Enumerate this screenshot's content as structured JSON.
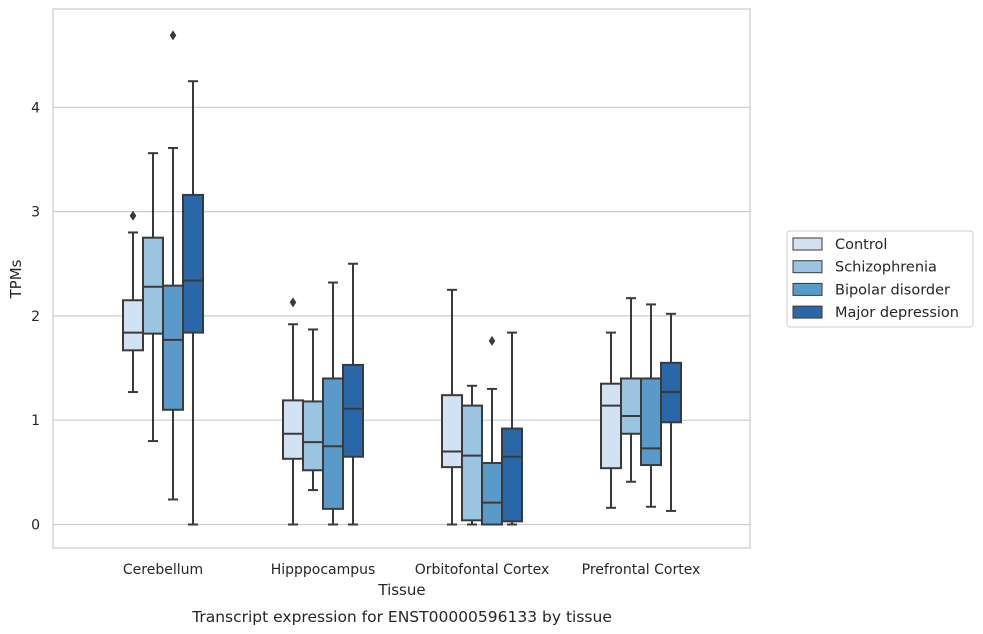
{
  "chart_data": {
    "type": "box",
    "title": "",
    "caption": "Transcript expression for ENST00000596133 by tissue",
    "xlabel": "Tissue",
    "ylabel": "TPMs",
    "ylim": [
      -0.22,
      4.95
    ],
    "yticks": [
      0,
      1,
      2,
      3,
      4
    ],
    "grid": "horizontal",
    "legend_position": "right",
    "categories": [
      "Cerebellum",
      "Hipppocampus",
      "Orbitofontal Cortex",
      "Prefrontal Cortex"
    ],
    "series": [
      {
        "name": "Control",
        "color": "#d2e2f2",
        "boxes": [
          {
            "whisker_low": 1.27,
            "q1": 1.67,
            "median": 1.84,
            "q3": 2.15,
            "whisker_high": 2.8,
            "outliers": [
              2.96
            ]
          },
          {
            "whisker_low": 0.0,
            "q1": 0.63,
            "median": 0.87,
            "q3": 1.19,
            "whisker_high": 1.92,
            "outliers": [
              2.13
            ]
          },
          {
            "whisker_low": 0.0,
            "q1": 0.55,
            "median": 0.7,
            "q3": 1.24,
            "whisker_high": 2.25,
            "outliers": []
          },
          {
            "whisker_low": 0.16,
            "q1": 0.54,
            "median": 1.14,
            "q3": 1.35,
            "whisker_high": 1.84,
            "outliers": []
          }
        ]
      },
      {
        "name": "Schizophrenia",
        "color": "#9ac4df",
        "boxes": [
          {
            "whisker_low": 0.8,
            "q1": 1.83,
            "median": 2.28,
            "q3": 2.75,
            "whisker_high": 3.56,
            "outliers": []
          },
          {
            "whisker_low": 0.33,
            "q1": 0.52,
            "median": 0.79,
            "q3": 1.18,
            "whisker_high": 1.87,
            "outliers": []
          },
          {
            "whisker_low": 0.0,
            "q1": 0.04,
            "median": 0.66,
            "q3": 1.14,
            "whisker_high": 1.33,
            "outliers": []
          },
          {
            "whisker_low": 0.41,
            "q1": 0.87,
            "median": 1.04,
            "q3": 1.4,
            "whisker_high": 2.17,
            "outliers": []
          }
        ]
      },
      {
        "name": "Bipolar disorder",
        "color": "#5a9ac8",
        "boxes": [
          {
            "whisker_low": 0.24,
            "q1": 1.1,
            "median": 1.77,
            "q3": 2.29,
            "whisker_high": 3.61,
            "outliers": [
              4.69
            ]
          },
          {
            "whisker_low": 0.0,
            "q1": 0.15,
            "median": 0.75,
            "q3": 1.4,
            "whisker_high": 2.32,
            "outliers": []
          },
          {
            "whisker_low": 0.0,
            "q1": 0.0,
            "median": 0.21,
            "q3": 0.59,
            "whisker_high": 1.3,
            "outliers": [
              1.76
            ]
          },
          {
            "whisker_low": 0.17,
            "q1": 0.57,
            "median": 0.73,
            "q3": 1.4,
            "whisker_high": 2.11,
            "outliers": []
          }
        ]
      },
      {
        "name": "Major depression",
        "color": "#2967a8",
        "boxes": [
          {
            "whisker_low": 0.0,
            "q1": 1.84,
            "median": 2.34,
            "q3": 3.16,
            "whisker_high": 4.25,
            "outliers": []
          },
          {
            "whisker_low": 0.0,
            "q1": 0.65,
            "median": 1.11,
            "q3": 1.53,
            "whisker_high": 2.5,
            "outliers": []
          },
          {
            "whisker_low": 0.0,
            "q1": 0.03,
            "median": 0.65,
            "q3": 0.92,
            "whisker_high": 1.84,
            "outliers": []
          },
          {
            "whisker_low": 0.13,
            "q1": 0.98,
            "median": 1.27,
            "q3": 1.55,
            "whisker_high": 2.02,
            "outliers": []
          }
        ]
      }
    ]
  }
}
